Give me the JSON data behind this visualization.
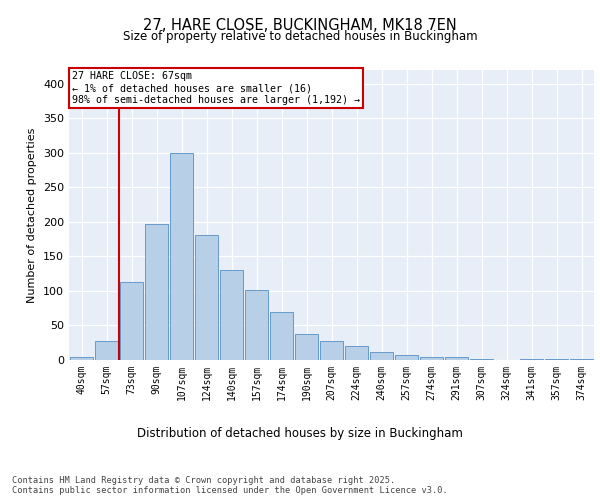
{
  "title_line1": "27, HARE CLOSE, BUCKINGHAM, MK18 7EN",
  "title_line2": "Size of property relative to detached houses in Buckingham",
  "xlabel": "Distribution of detached houses by size in Buckingham",
  "ylabel": "Number of detached properties",
  "categories": [
    "40sqm",
    "57sqm",
    "73sqm",
    "90sqm",
    "107sqm",
    "124sqm",
    "140sqm",
    "157sqm",
    "174sqm",
    "190sqm",
    "207sqm",
    "224sqm",
    "240sqm",
    "257sqm",
    "274sqm",
    "291sqm",
    "307sqm",
    "324sqm",
    "341sqm",
    "357sqm",
    "374sqm"
  ],
  "values": [
    5,
    28,
    113,
    197,
    300,
    181,
    131,
    102,
    70,
    38,
    27,
    20,
    12,
    7,
    4,
    4,
    1,
    0,
    1,
    1,
    1
  ],
  "bar_color": "#b8cfe8",
  "bar_edge_color": "#6699cc",
  "vline_x": 1.5,
  "vline_color": "#cc0000",
  "annotation_text": "27 HARE CLOSE: 67sqm\n← 1% of detached houses are smaller (16)\n98% of semi-detached houses are larger (1,192) →",
  "annotation_box_color": "#ffffff",
  "annotation_box_edge": "#cc0000",
  "background_color": "#e8eef8",
  "grid_color": "#ffffff",
  "fig_bg_color": "#ffffff",
  "ylim": [
    0,
    420
  ],
  "yticks": [
    0,
    50,
    100,
    150,
    200,
    250,
    300,
    350,
    400
  ],
  "footer_text": "Contains HM Land Registry data © Crown copyright and database right 2025.\nContains public sector information licensed under the Open Government Licence v3.0."
}
